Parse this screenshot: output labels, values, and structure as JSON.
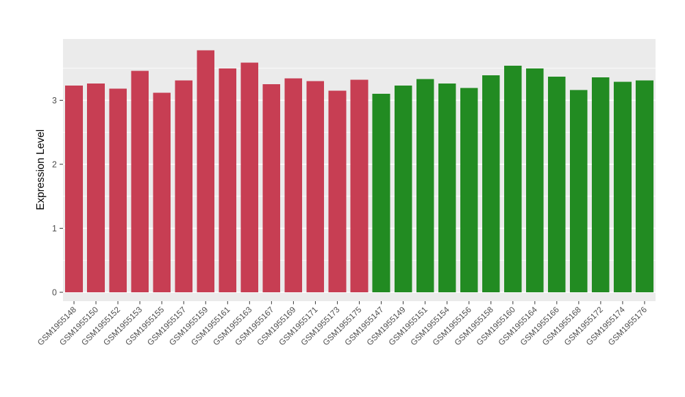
{
  "chart": {
    "page_bg": "#FFFFFF",
    "panel_bg": "#EBEBEB",
    "grid_color": "#FFFFFF",
    "axis_text_color": "#4D4D4D",
    "axis_title_color": "#000000",
    "tick_mark_color": "#333333"
  },
  "chart_data": {
    "type": "bar",
    "title": "",
    "xlabel": "",
    "ylabel": "Expression Level",
    "ylim": [
      0,
      3.97
    ],
    "yticks": [
      0,
      1,
      2,
      3
    ],
    "grid": "horizontal major+minor, white on gray panel",
    "legend": "none",
    "x_label_rotation": 45,
    "categories": [
      "GSM1955148",
      "GSM1955150",
      "GSM1955152",
      "GSM1955153",
      "GSM1955155",
      "GSM1955157",
      "GSM1955159",
      "GSM1955161",
      "GSM1955163",
      "GSM1955167",
      "GSM1955169",
      "GSM1955171",
      "GSM1955173",
      "GSM1955175",
      "GSM1955147",
      "GSM1955149",
      "GSM1955151",
      "GSM1955154",
      "GSM1955156",
      "GSM1955158",
      "GSM1955160",
      "GSM1955164",
      "GSM1955166",
      "GSM1955168",
      "GSM1955172",
      "GSM1955174",
      "GSM1955176"
    ],
    "values": [
      3.23,
      3.26,
      3.18,
      3.46,
      3.12,
      3.31,
      3.78,
      3.5,
      3.59,
      3.25,
      3.34,
      3.3,
      3.15,
      3.32,
      3.1,
      3.23,
      3.33,
      3.26,
      3.19,
      3.39,
      3.54,
      3.5,
      3.37,
      3.16,
      3.36,
      3.29,
      3.31
    ],
    "bar_groups": [
      "red",
      "red",
      "red",
      "red",
      "red",
      "red",
      "red",
      "red",
      "red",
      "red",
      "red",
      "red",
      "red",
      "red",
      "green",
      "green",
      "green",
      "green",
      "green",
      "green",
      "green",
      "green",
      "green",
      "green",
      "green",
      "green",
      "green"
    ],
    "group_colors": {
      "red": "#C73E53",
      "green": "#228B22"
    }
  }
}
